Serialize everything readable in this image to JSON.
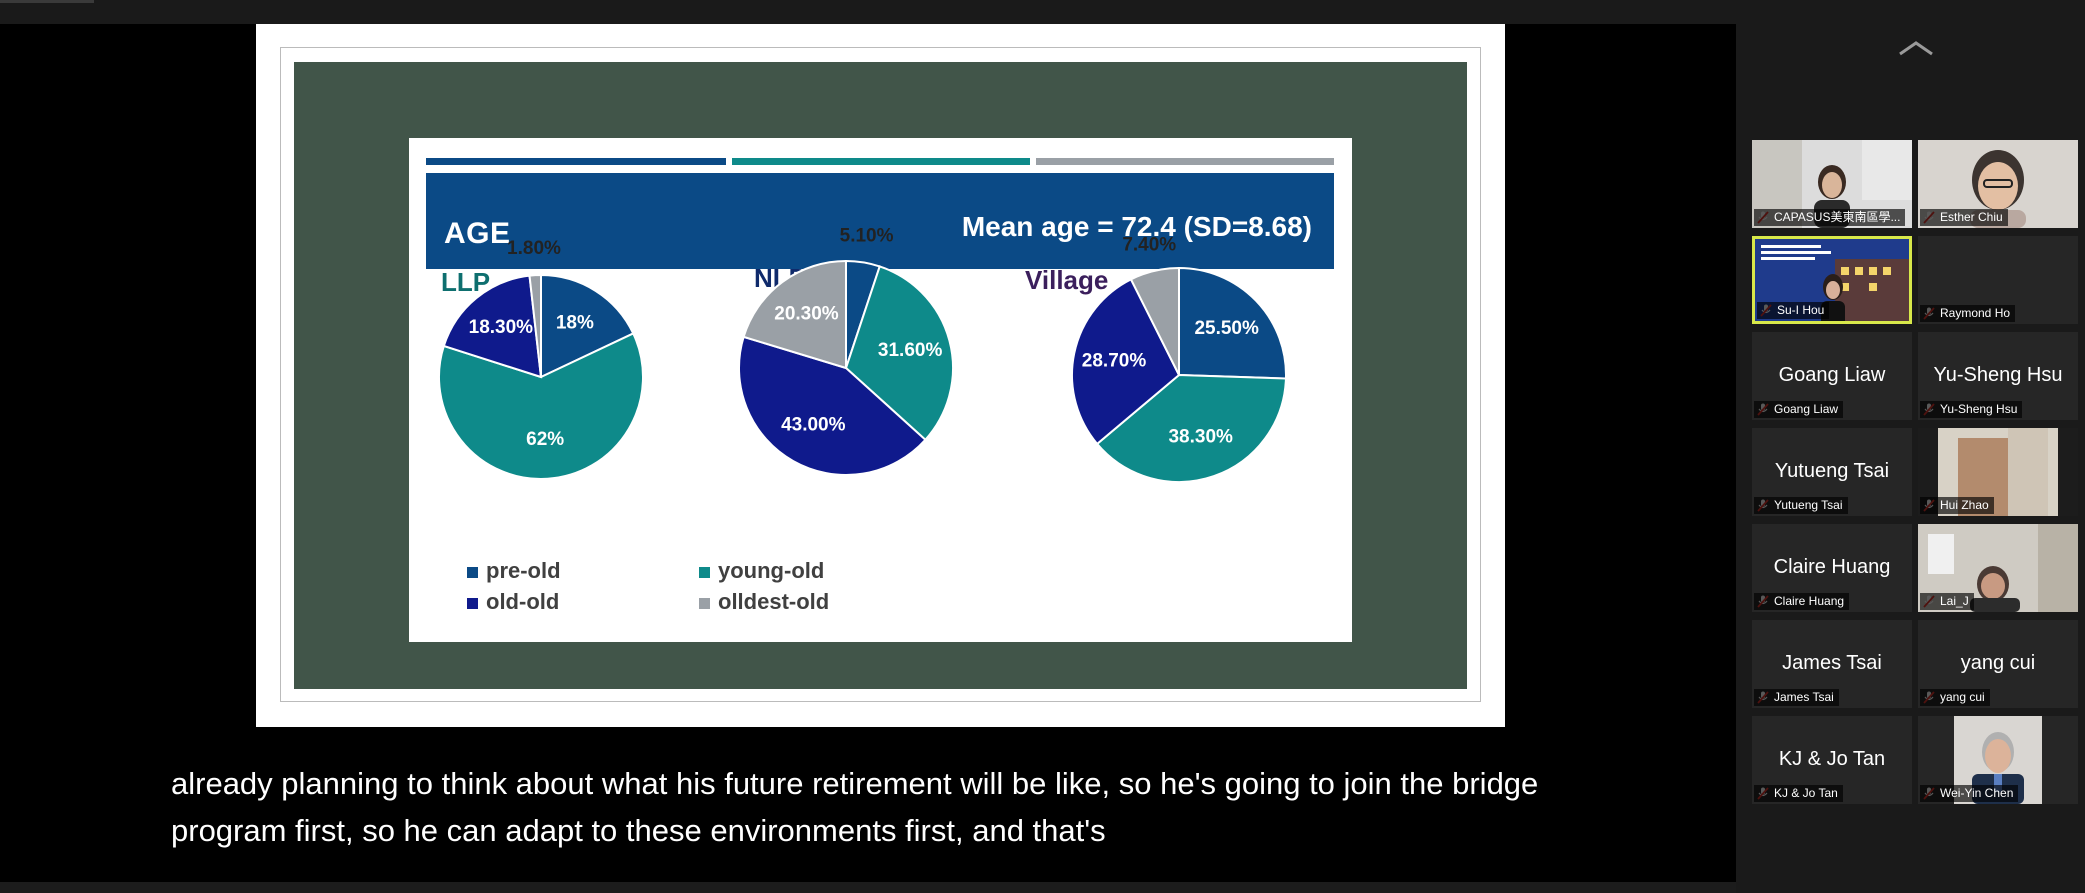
{
  "slide": {
    "age_title": "AGE",
    "mean_text": "Mean age = 72.4 (SD=8.68)",
    "colors": {
      "pre_old": "#0b4a86",
      "young_old": "#0e8a8a",
      "old_old": "#0f1a8c",
      "oldest_old": "#9aa0a6",
      "stripe1": "#0b4a86",
      "stripe2": "#0e8a8a",
      "stripe3": "#9aa0a6",
      "title_llp": "#0e6f6f",
      "title_nlp": "#0f2a6b",
      "title_village": "#3b1f5c"
    },
    "legend": {
      "pre_old": "pre-old",
      "young_old": "young-old",
      "old_old": "old-old",
      "oldest_old": "olldest-old"
    }
  },
  "chart_data": [
    {
      "type": "pie",
      "title": "LLP",
      "categories": [
        "pre-old",
        "young-old",
        "old-old",
        "olldest-old"
      ],
      "values": [
        18,
        62,
        18.3,
        1.8
      ],
      "labels": [
        "18%",
        "62%",
        "18.30%",
        "1.80%"
      ]
    },
    {
      "type": "pie",
      "title": "NLP",
      "categories": [
        "pre-old",
        "young-old",
        "old-old",
        "olldest-old"
      ],
      "values": [
        5.1,
        31.6,
        43.0,
        20.3
      ],
      "labels": [
        "5.10%",
        "31.60%",
        "43.00%",
        "20.30%"
      ]
    },
    {
      "type": "pie",
      "title": "Village",
      "categories": [
        "pre-old",
        "young-old",
        "old-old",
        "olldest-old"
      ],
      "values": [
        25.5,
        38.3,
        28.7,
        7.4
      ],
      "labels": [
        "25.50%",
        "38.30%",
        "28.70%",
        "7.40%"
      ]
    }
  ],
  "caption": {
    "line1": "already planning to think about what his future retirement will be like, so he's going to join the bridge",
    "line2": "program first, so he can adapt to these environments first, and that's"
  },
  "gallery": {
    "participants": [
      {
        "label": "CAPASUS美東南區學...",
        "big": "",
        "video": true
      },
      {
        "label": "Esther Chiu",
        "big": "",
        "video": true
      },
      {
        "label": "Su-I Hou",
        "big": "",
        "video": true,
        "active": true
      },
      {
        "label": "Raymond Ho",
        "big": "",
        "video": false
      },
      {
        "label": "Goang Liaw",
        "big": "Goang Liaw",
        "video": false
      },
      {
        "label": "Yu-Sheng Hsu",
        "big": "Yu-Sheng Hsu",
        "video": false
      },
      {
        "label": "Yutueng Tsai",
        "big": "Yutueng Tsai",
        "video": false
      },
      {
        "label": "Hui Zhao",
        "big": "",
        "video": true
      },
      {
        "label": "Claire Huang",
        "big": "Claire Huang",
        "video": false
      },
      {
        "label": "Lai_J",
        "big": "",
        "video": true
      },
      {
        "label": "James Tsai",
        "big": "James Tsai",
        "video": false
      },
      {
        "label": "yang cui",
        "big": "yang cui",
        "video": false
      },
      {
        "label": "KJ & Jo Tan",
        "big": "KJ & Jo Tan",
        "video": false
      },
      {
        "label": "Wei-Yin Chen",
        "big": "",
        "video": true
      }
    ],
    "mic_icon": "muted-mic-icon",
    "collapse_icon": "chevron-up-icon"
  }
}
